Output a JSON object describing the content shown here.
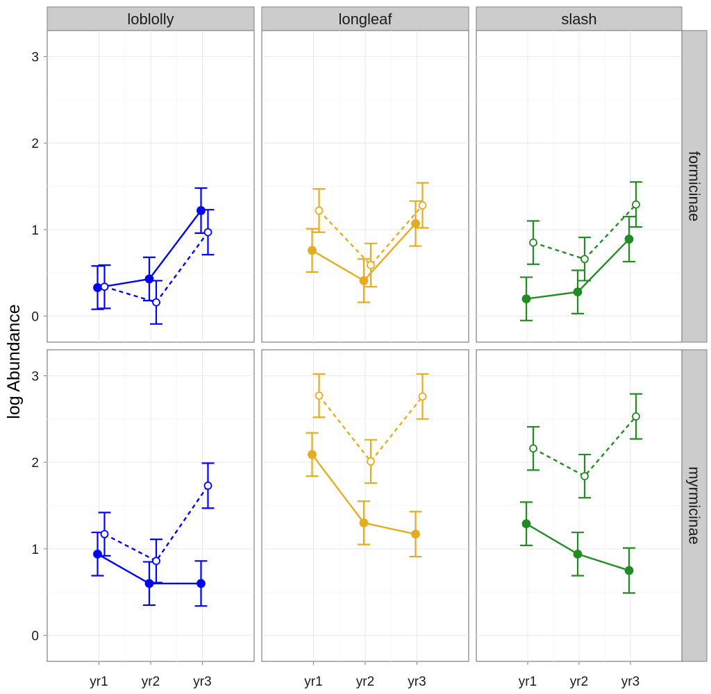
{
  "chart_data": {
    "type": "line",
    "ylabel": "log Abundance",
    "xlabel": "",
    "categories": [
      "yr1",
      "yr2",
      "yr3"
    ],
    "yticks": [
      "0",
      "1",
      "2",
      "3"
    ],
    "ylim": [
      -0.3,
      3.3
    ],
    "column_facets": [
      "loblolly",
      "longleaf",
      "slash"
    ],
    "row_facets": [
      "formicinae",
      "myrmicinae"
    ],
    "colors": {
      "loblolly": "#0000ff",
      "longleaf": "#e6ac20",
      "slash": "#228b22"
    },
    "panels": [
      {
        "column": "loblolly",
        "row": "formicinae",
        "series": [
          {
            "name": "filled",
            "style": "solid",
            "values": [
              0.33,
              0.43,
              1.22
            ],
            "errors": [
              0.25,
              0.25,
              0.26
            ]
          },
          {
            "name": "open",
            "style": "dashed",
            "values": [
              0.34,
              0.16,
              0.97
            ],
            "errors": [
              0.25,
              0.25,
              0.26
            ]
          }
        ]
      },
      {
        "column": "longleaf",
        "row": "formicinae",
        "series": [
          {
            "name": "filled",
            "style": "solid",
            "values": [
              0.76,
              0.41,
              1.07
            ],
            "errors": [
              0.25,
              0.25,
              0.26
            ]
          },
          {
            "name": "open",
            "style": "dashed",
            "values": [
              1.22,
              0.59,
              1.28
            ],
            "errors": [
              0.25,
              0.25,
              0.26
            ]
          }
        ]
      },
      {
        "column": "slash",
        "row": "formicinae",
        "series": [
          {
            "name": "filled",
            "style": "solid",
            "values": [
              0.2,
              0.28,
              0.89
            ],
            "errors": [
              0.25,
              0.25,
              0.26
            ]
          },
          {
            "name": "open",
            "style": "dashed",
            "values": [
              0.85,
              0.66,
              1.29
            ],
            "errors": [
              0.25,
              0.25,
              0.26
            ]
          }
        ]
      },
      {
        "column": "loblolly",
        "row": "myrmicinae",
        "series": [
          {
            "name": "filled",
            "style": "solid",
            "values": [
              0.94,
              0.6,
              0.6
            ],
            "errors": [
              0.25,
              0.25,
              0.26
            ]
          },
          {
            "name": "open",
            "style": "dashed",
            "values": [
              1.17,
              0.86,
              1.73
            ],
            "errors": [
              0.25,
              0.25,
              0.26
            ]
          }
        ]
      },
      {
        "column": "longleaf",
        "row": "myrmicinae",
        "series": [
          {
            "name": "filled",
            "style": "solid",
            "values": [
              2.09,
              1.3,
              1.17
            ],
            "errors": [
              0.25,
              0.25,
              0.26
            ]
          },
          {
            "name": "open",
            "style": "dashed",
            "values": [
              2.77,
              2.01,
              2.76
            ],
            "errors": [
              0.25,
              0.25,
              0.26
            ]
          }
        ]
      },
      {
        "column": "slash",
        "row": "myrmicinae",
        "series": [
          {
            "name": "filled",
            "style": "solid",
            "values": [
              1.29,
              0.94,
              0.75
            ],
            "errors": [
              0.25,
              0.25,
              0.26
            ]
          },
          {
            "name": "open",
            "style": "dashed",
            "values": [
              2.16,
              1.84,
              2.53
            ],
            "errors": [
              0.25,
              0.25,
              0.26
            ]
          }
        ]
      }
    ]
  }
}
